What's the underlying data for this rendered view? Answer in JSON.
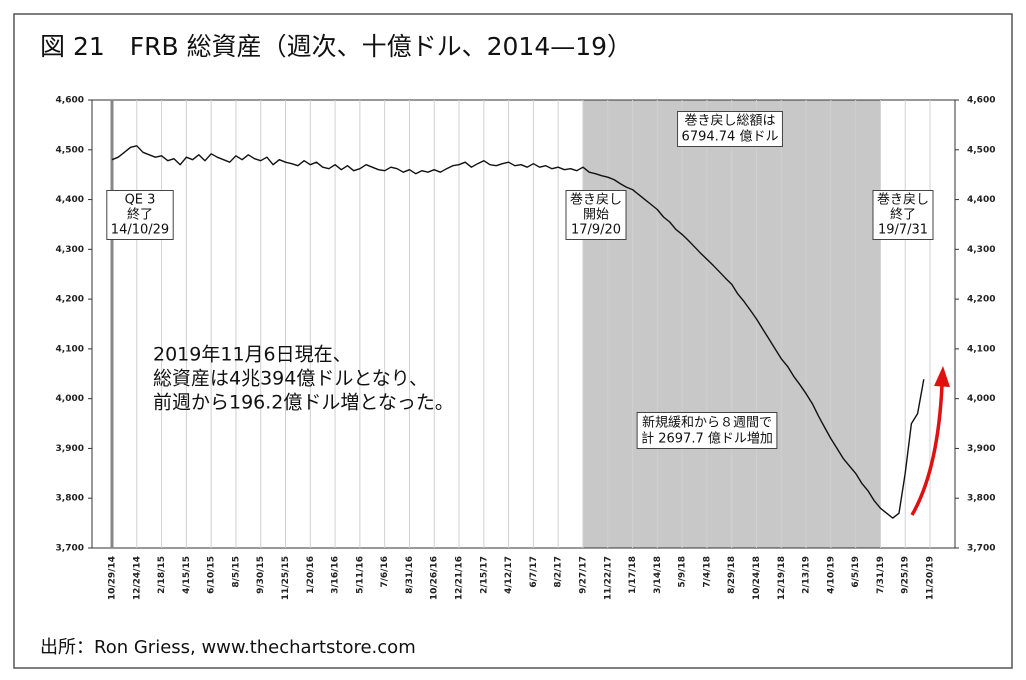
{
  "chart_data": {
    "type": "line",
    "title": "図 21　FRB 総資産（週次、十億ドル、2014—19）",
    "source": "出所：Ron Griess, www.thechartstore.com",
    "categories": [
      "10/29/14",
      null,
      null,
      null,
      "12/24/14",
      null,
      null,
      null,
      "2/18/15",
      null,
      null,
      null,
      "4/15/15",
      null,
      null,
      null,
      "6/10/15",
      null,
      null,
      null,
      "8/5/15",
      null,
      null,
      null,
      "9/30/15",
      null,
      null,
      null,
      "11/25/15",
      null,
      null,
      null,
      "1/20/16",
      null,
      null,
      null,
      "3/16/16",
      null,
      null,
      null,
      "5/11/16",
      null,
      null,
      null,
      "7/6/16",
      null,
      null,
      null,
      "8/31/16",
      null,
      null,
      null,
      "10/26/16",
      null,
      null,
      null,
      "12/21/16",
      null,
      null,
      null,
      "2/15/17",
      null,
      null,
      null,
      "4/12/17",
      null,
      null,
      null,
      "6/7/17",
      null,
      null,
      null,
      "8/2/17",
      null,
      null,
      null,
      "9/27/17",
      null,
      null,
      null,
      "11/22/17",
      null,
      null,
      null,
      "1/17/18",
      null,
      null,
      null,
      "3/14/18",
      null,
      null,
      null,
      "5/9/18",
      null,
      null,
      null,
      "7/4/18",
      null,
      null,
      null,
      "8/29/18",
      null,
      null,
      null,
      "10/24/18",
      null,
      null,
      null,
      "12/19/18",
      null,
      null,
      null,
      "2/13/19",
      null,
      null,
      null,
      "4/10/19",
      null,
      null,
      null,
      "6/5/19",
      null,
      null,
      null,
      "7/31/19",
      null,
      null,
      null,
      "9/25/19",
      null,
      null,
      null,
      "11/20/19"
    ],
    "series": [
      {
        "name": "FRB 総資産",
        "color": "#111111",
        "values": [
          4480,
          4485,
          4495,
          4505,
          4508,
          4495,
          4490,
          4485,
          4488,
          4478,
          4482,
          4470,
          4485,
          4480,
          4490,
          4478,
          4492,
          4485,
          4480,
          4475,
          4488,
          4480,
          4490,
          4482,
          4478,
          4485,
          4470,
          4480,
          4475,
          4472,
          4468,
          4478,
          4470,
          4475,
          4465,
          4462,
          4470,
          4460,
          4468,
          4458,
          4462,
          4470,
          4465,
          4460,
          4458,
          4465,
          4462,
          4455,
          4460,
          4452,
          4458,
          4455,
          4460,
          4455,
          4462,
          4468,
          4470,
          4475,
          4465,
          4472,
          4478,
          4470,
          4468,
          4472,
          4475,
          4468,
          4470,
          4465,
          4472,
          4465,
          4468,
          4462,
          4465,
          4460,
          4462,
          4458,
          4465,
          4455,
          4452,
          4448,
          4445,
          4440,
          4432,
          4425,
          4420,
          4410,
          4400,
          4390,
          4380,
          4365,
          4355,
          4340,
          4330,
          4318,
          4305,
          4292,
          4280,
          4268,
          4255,
          4242,
          4230,
          4210,
          4195,
          4178,
          4160,
          4140,
          4120,
          4100,
          4080,
          4065,
          4045,
          4028,
          4010,
          3990,
          3965,
          3942,
          3920,
          3900,
          3880,
          3865,
          3850,
          3830,
          3815,
          3795,
          3780,
          3770,
          3760,
          3770,
          3850,
          3950,
          3970,
          4039,
          null
        ]
      }
    ],
    "ylim": [
      3700,
      4600
    ],
    "yticks": [
      {
        "value": 3700,
        "label": "3,700"
      },
      {
        "value": 3800,
        "label": "3,800"
      },
      {
        "value": 3900,
        "label": "3,900"
      },
      {
        "value": 4000,
        "label": "4,000"
      },
      {
        "value": 4100,
        "label": "4,100"
      },
      {
        "value": 4200,
        "label": "4,200"
      },
      {
        "value": 4300,
        "label": "4,300"
      },
      {
        "value": 4400,
        "label": "4,400"
      },
      {
        "value": 4500,
        "label": "4,500"
      },
      {
        "value": 4600,
        "label": "4,600"
      }
    ],
    "y2lim": [
      3700,
      4600
    ],
    "y2ticks": [
      {
        "value": 3700,
        "label": "3,700"
      },
      {
        "value": 3800,
        "label": "3,800"
      },
      {
        "value": 3900,
        "label": "3,900"
      },
      {
        "value": 4000,
        "label": "4,000"
      },
      {
        "value": 4100,
        "label": "4,100"
      },
      {
        "value": 4200,
        "label": "4,200"
      },
      {
        "value": 4300,
        "label": "4,300"
      },
      {
        "value": 4400,
        "label": "4,400"
      },
      {
        "value": 4500,
        "label": "4,500"
      },
      {
        "value": 4600,
        "label": "4,600"
      }
    ],
    "grid": "x",
    "shaded": {
      "from": "9/27/17",
      "to": "7/31/19",
      "color": "#c8c8c8"
    },
    "vertical_line": {
      "at": "10/29/14",
      "color": "#888888"
    },
    "annotations": [
      {
        "lines": [
          "QE 3",
          "終了",
          "14/10/29"
        ],
        "box": true
      },
      {
        "lines": [
          "巻き戻し",
          "開始",
          "17/9/20"
        ],
        "box": true
      },
      {
        "lines": [
          "巻き戻し",
          "終了",
          "19/7/31"
        ],
        "box": true
      },
      {
        "lines": [
          "巻き戻し総額は",
          "6794.74 億ドル"
        ],
        "box": true
      },
      {
        "lines": [
          "2019年11月6日現在、",
          "総資産は4兆394億ドルとなり、",
          "前週から196.2億ドル増となった。"
        ],
        "box": false
      },
      {
        "lines": [
          "新規緩和から８週間で",
          "計 2697.7 億ドル増加"
        ],
        "box": true
      }
    ]
  }
}
